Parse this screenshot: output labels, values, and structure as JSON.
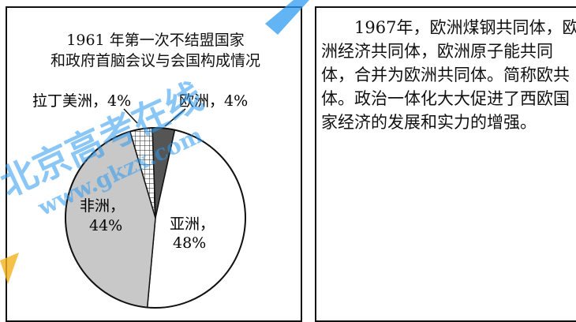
{
  "chart_data": {
    "type": "pie",
    "title_line1": "1961 年第一次不结盟国家",
    "title_line2": "和政府首脑会议与会国构成情况",
    "slices": [
      {
        "name": "欧洲",
        "value": 4,
        "value_label": "4%",
        "fill": "#555555",
        "pattern": "solid-dark"
      },
      {
        "name": "亚洲",
        "value": 48,
        "value_label": "48%",
        "fill": "#ffffff",
        "pattern": "white"
      },
      {
        "name": "非洲",
        "value": 44,
        "value_label": "44%",
        "fill": "#c8c8c8",
        "pattern": "gray"
      },
      {
        "name": "拉丁美洲",
        "value": 4,
        "value_label": "4%",
        "fill": "#ffffff",
        "pattern": "grid"
      }
    ]
  },
  "labels": {
    "europe": "欧洲，4%",
    "latam": "拉丁美洲，4%",
    "africa_name": "非洲，",
    "africa_value": "44%",
    "asia_name": "亚洲，",
    "asia_value": "48%"
  },
  "text_block": {
    "paragraph": "1967年，欧洲煤钢共同体，欧洲经济共同体，欧洲原子能共同体，合并为欧洲共同体。简称欧共体。政治一体化大大促进了西欧国家经济的发展和实力的增强。"
  },
  "watermark": {
    "text_main": "北京高考在线",
    "text_url": "www.gkzx.com"
  }
}
